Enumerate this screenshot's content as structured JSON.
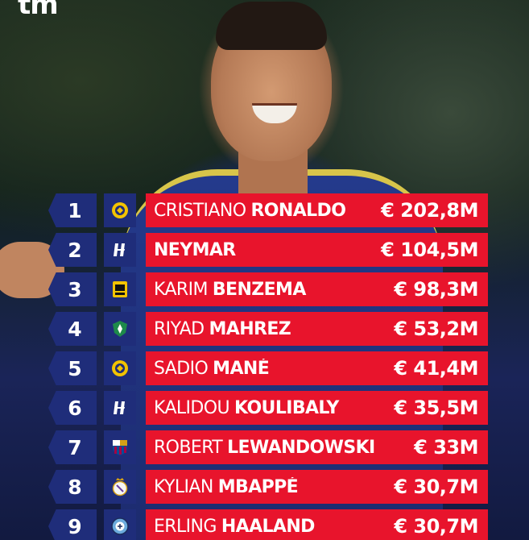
{
  "logo": "tm",
  "players": [
    {
      "rank": "1",
      "first": "CRISTIANO",
      "last": "RONALDO",
      "value": "€ 202,8M",
      "club_icon": "al-nassr-crest-icon",
      "club_color": "#f2c300"
    },
    {
      "rank": "2",
      "first": "",
      "last": "NEYMAR",
      "value": "€ 104,5M",
      "club_icon": "al-hilal-crest-icon",
      "club_color": "#1c3fb8"
    },
    {
      "rank": "3",
      "first": "KARIM",
      "last": "BENZEMA",
      "value": "€ 98,3M",
      "club_icon": "al-ittihad-crest-icon",
      "club_color": "#f2c300"
    },
    {
      "rank": "4",
      "first": "RIYAD",
      "last": "MAHREZ",
      "value": "€ 53,2M",
      "club_icon": "al-ahli-crest-icon",
      "club_color": "#1e8a4a"
    },
    {
      "rank": "5",
      "first": "SADIO",
      "last": "MANÉ",
      "value": "€ 41,4M",
      "club_icon": "al-nassr-crest-icon",
      "club_color": "#f2c300"
    },
    {
      "rank": "6",
      "first": "KALIDOU",
      "last": "KOULIBALY",
      "value": "€ 35,5M",
      "club_icon": "al-hilal-crest-icon",
      "club_color": "#1c3fb8"
    },
    {
      "rank": "7",
      "first": "ROBERT",
      "last": "LEWANDOWSKI",
      "value": "€ 33M",
      "club_icon": "fc-barcelona-crest-icon",
      "club_color": "#a50044"
    },
    {
      "rank": "8",
      "first": "KYLIAN",
      "last": "MBAPPÉ",
      "value": "€ 30,7M",
      "club_icon": "real-madrid-crest-icon",
      "club_color": "#f5f5f5"
    },
    {
      "rank": "9",
      "first": "ERLING",
      "last": "HAALAND",
      "value": "€ 30,7M",
      "club_icon": "manchester-city-crest-icon",
      "club_color": "#6cabdd"
    }
  ],
  "colors": {
    "rank_bg": "#1f2d7a",
    "bar_bg": "#e8142c",
    "text": "#ffffff"
  }
}
